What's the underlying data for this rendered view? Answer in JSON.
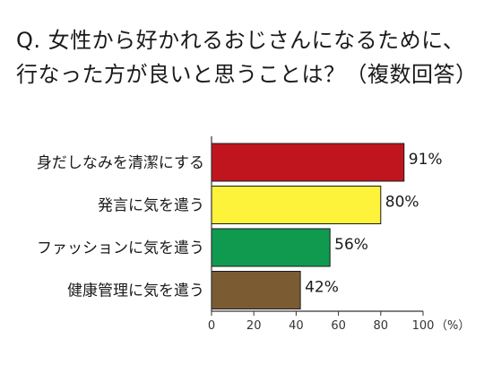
{
  "title_line1": "Q. 女性から好かれるおじさんになるために、",
  "title_line2": "行なった方が良いと思うことは？（複数回答）",
  "chart_data": {
    "type": "bar",
    "orientation": "horizontal",
    "categories": [
      "身だしなみを清潔にする",
      "発言に気を遣う",
      "ファッションに気を遣う",
      "健康管理に気を遣う"
    ],
    "values": [
      91,
      80,
      56,
      42
    ],
    "value_labels": [
      "91%",
      "80%",
      "56%",
      "42%"
    ],
    "bar_colors": [
      "#c0151f",
      "#fdf33a",
      "#0f9a50",
      "#7b5b32"
    ],
    "xlim": [
      0,
      100
    ],
    "xticks": [
      0,
      20,
      40,
      60,
      80,
      100
    ],
    "xtick_labels": [
      "0",
      "20",
      "40",
      "60",
      "80",
      "100"
    ],
    "xunit": "（%）",
    "grid": false
  }
}
